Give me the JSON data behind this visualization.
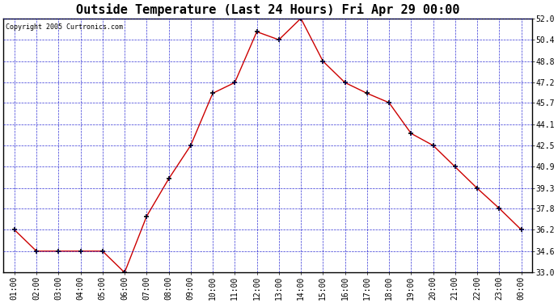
{
  "title": "Outside Temperature (Last 24 Hours) Fri Apr 29 00:00",
  "copyright": "Copyright 2005 Curtronics.com",
  "x_labels": [
    "01:00",
    "02:00",
    "03:00",
    "04:00",
    "05:00",
    "06:00",
    "07:00",
    "08:00",
    "09:00",
    "10:00",
    "11:00",
    "12:00",
    "13:00",
    "14:00",
    "15:00",
    "16:00",
    "17:00",
    "18:00",
    "19:00",
    "20:00",
    "21:00",
    "22:00",
    "23:00",
    "00:00"
  ],
  "y_values": [
    36.2,
    34.6,
    34.6,
    34.6,
    34.6,
    33.0,
    37.2,
    40.0,
    42.5,
    46.4,
    47.2,
    51.0,
    50.4,
    52.0,
    48.8,
    47.2,
    46.4,
    45.7,
    43.4,
    42.5,
    40.9,
    39.3,
    37.8,
    36.2
  ],
  "line_color": "#cc0000",
  "marker_color": "#000000",
  "bg_color": "#ffffff",
  "plot_bg_color": "#ffffff",
  "grid_color": "#0000cc",
  "title_fontsize": 11,
  "y_min": 33.0,
  "y_max": 52.0,
  "y_ticks": [
    33.0,
    34.6,
    36.2,
    37.8,
    39.3,
    40.9,
    42.5,
    44.1,
    45.7,
    47.2,
    48.8,
    50.4,
    52.0
  ]
}
